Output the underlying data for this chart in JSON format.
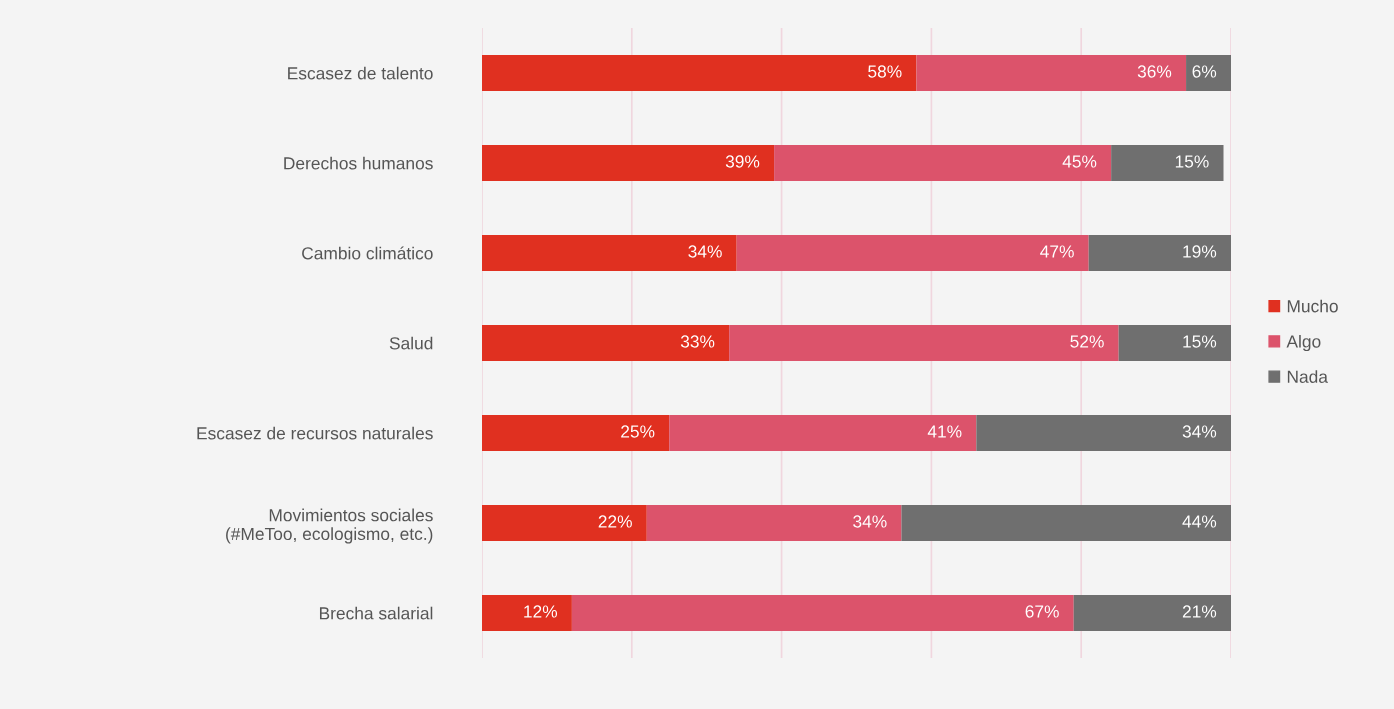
{
  "chart_data": {
    "type": "bar",
    "orientation": "horizontal",
    "stacked": true,
    "categories": [
      "Escasez de talento",
      "Derechos humanos",
      "Cambio climático",
      "Salud",
      "Escasez de recursos naturales",
      "Movimientos sociales\n(#MeToo, ecologismo, etc.)",
      "Brecha salarial"
    ],
    "series": [
      {
        "name": "Mucho",
        "color": "#e03020",
        "values": [
          58,
          39,
          34,
          33,
          25,
          22,
          12
        ],
        "value_labels": [
          "58%",
          "39%",
          "34%",
          "33%",
          "25%",
          "22%",
          "12%"
        ]
      },
      {
        "name": "Algo",
        "color": "#dc536b",
        "values": [
          36,
          45,
          47,
          52,
          41,
          34,
          67
        ],
        "value_labels": [
          "36%",
          "45%",
          "47%",
          "52%",
          "41%",
          "34%",
          "67%"
        ]
      },
      {
        "name": "Nada",
        "color": "#6f6f6f",
        "values": [
          6,
          15,
          19,
          15,
          34,
          44,
          21
        ],
        "value_labels": [
          "6%",
          "15%",
          "19%",
          "15%",
          "34%",
          "44%",
          "21%"
        ]
      }
    ],
    "xlim": [
      0,
      100
    ],
    "xticks": [
      {
        "value": 0,
        "label": null
      },
      {
        "value": 20,
        "label": null
      },
      {
        "value": 40,
        "label": null
      },
      {
        "value": 60,
        "label": null
      },
      {
        "value": 80,
        "label": null
      },
      {
        "value": 100,
        "label": null
      }
    ],
    "grid": "x",
    "legend": "right",
    "tick_labels": "y"
  }
}
